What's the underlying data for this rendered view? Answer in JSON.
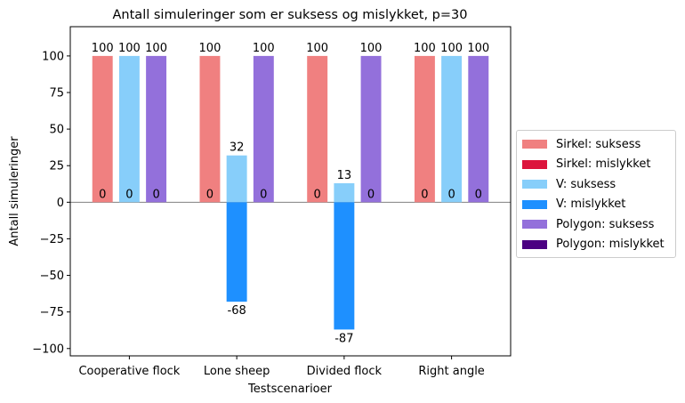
{
  "chart_data": {
    "type": "bar",
    "title": "Antall simuleringer som er suksess og mislykket, p=30",
    "xlabel": "Testscenarioer",
    "ylabel": "Antall simuleringer",
    "categories": [
      "Cooperative flock",
      "Lone sheep",
      "Divided flock",
      "Right angle"
    ],
    "ylim": [
      -105,
      120
    ],
    "yticks": [
      -100,
      -75,
      -50,
      -25,
      0,
      25,
      50,
      75,
      100
    ],
    "ytick_labels": [
      "−100",
      "−75",
      "−50",
      "−25",
      "0",
      "25",
      "50",
      "75",
      "100"
    ],
    "grid": false,
    "legend_position": "center-right-outside",
    "series": [
      {
        "name": "Sirkel: suksess",
        "color": "#f08080",
        "group": 0,
        "values": [
          100,
          100,
          100,
          100
        ],
        "labels": [
          "100",
          "100",
          "100",
          "100"
        ]
      },
      {
        "name": "Sirkel: mislykket",
        "color": "#dc143c",
        "group": 0,
        "values": [
          0,
          0,
          0,
          0
        ],
        "labels": [
          "0",
          "0",
          "0",
          "0"
        ]
      },
      {
        "name": "V: suksess",
        "color": "#87cefa",
        "group": 1,
        "values": [
          100,
          32,
          13,
          100
        ],
        "labels": [
          "100",
          "32",
          "13",
          "100"
        ]
      },
      {
        "name": "V: mislykket",
        "color": "#1e90ff",
        "group": 1,
        "values": [
          0,
          -68,
          -87,
          0
        ],
        "labels": [
          "0",
          "-68",
          "-87",
          "0"
        ]
      },
      {
        "name": "Polygon: suksess",
        "color": "#9370db",
        "group": 2,
        "values": [
          100,
          100,
          100,
          100
        ],
        "labels": [
          "100",
          "100",
          "100",
          "100"
        ]
      },
      {
        "name": "Polygon: mislykket",
        "color": "#4b0082",
        "group": 2,
        "values": [
          0,
          0,
          0,
          0
        ],
        "labels": [
          "0",
          "0",
          "0",
          "0"
        ]
      }
    ]
  }
}
